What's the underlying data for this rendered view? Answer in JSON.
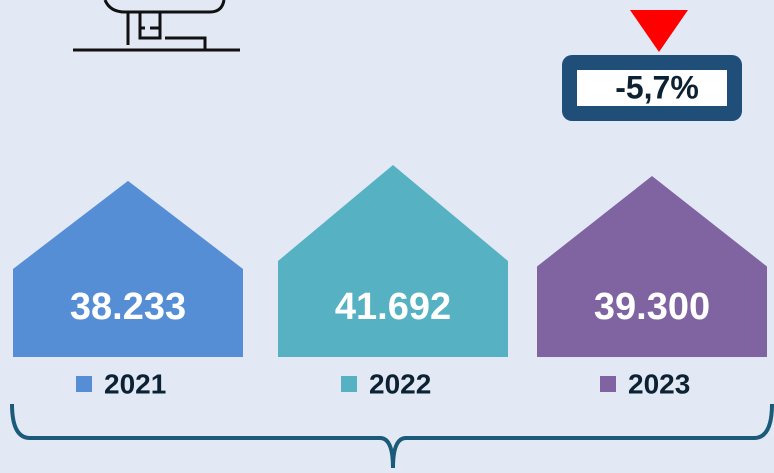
{
  "chart_data": {
    "type": "house",
    "categories": [
      "2021",
      "2022",
      "2023"
    ],
    "values": [
      38233,
      41692,
      39300
    ],
    "value_labels": [
      "38.233",
      "41.692",
      "39.300"
    ],
    "colors": [
      "#558ed5",
      "#56b2c2",
      "#8064a2"
    ],
    "annotation": "-5,7%"
  }
}
